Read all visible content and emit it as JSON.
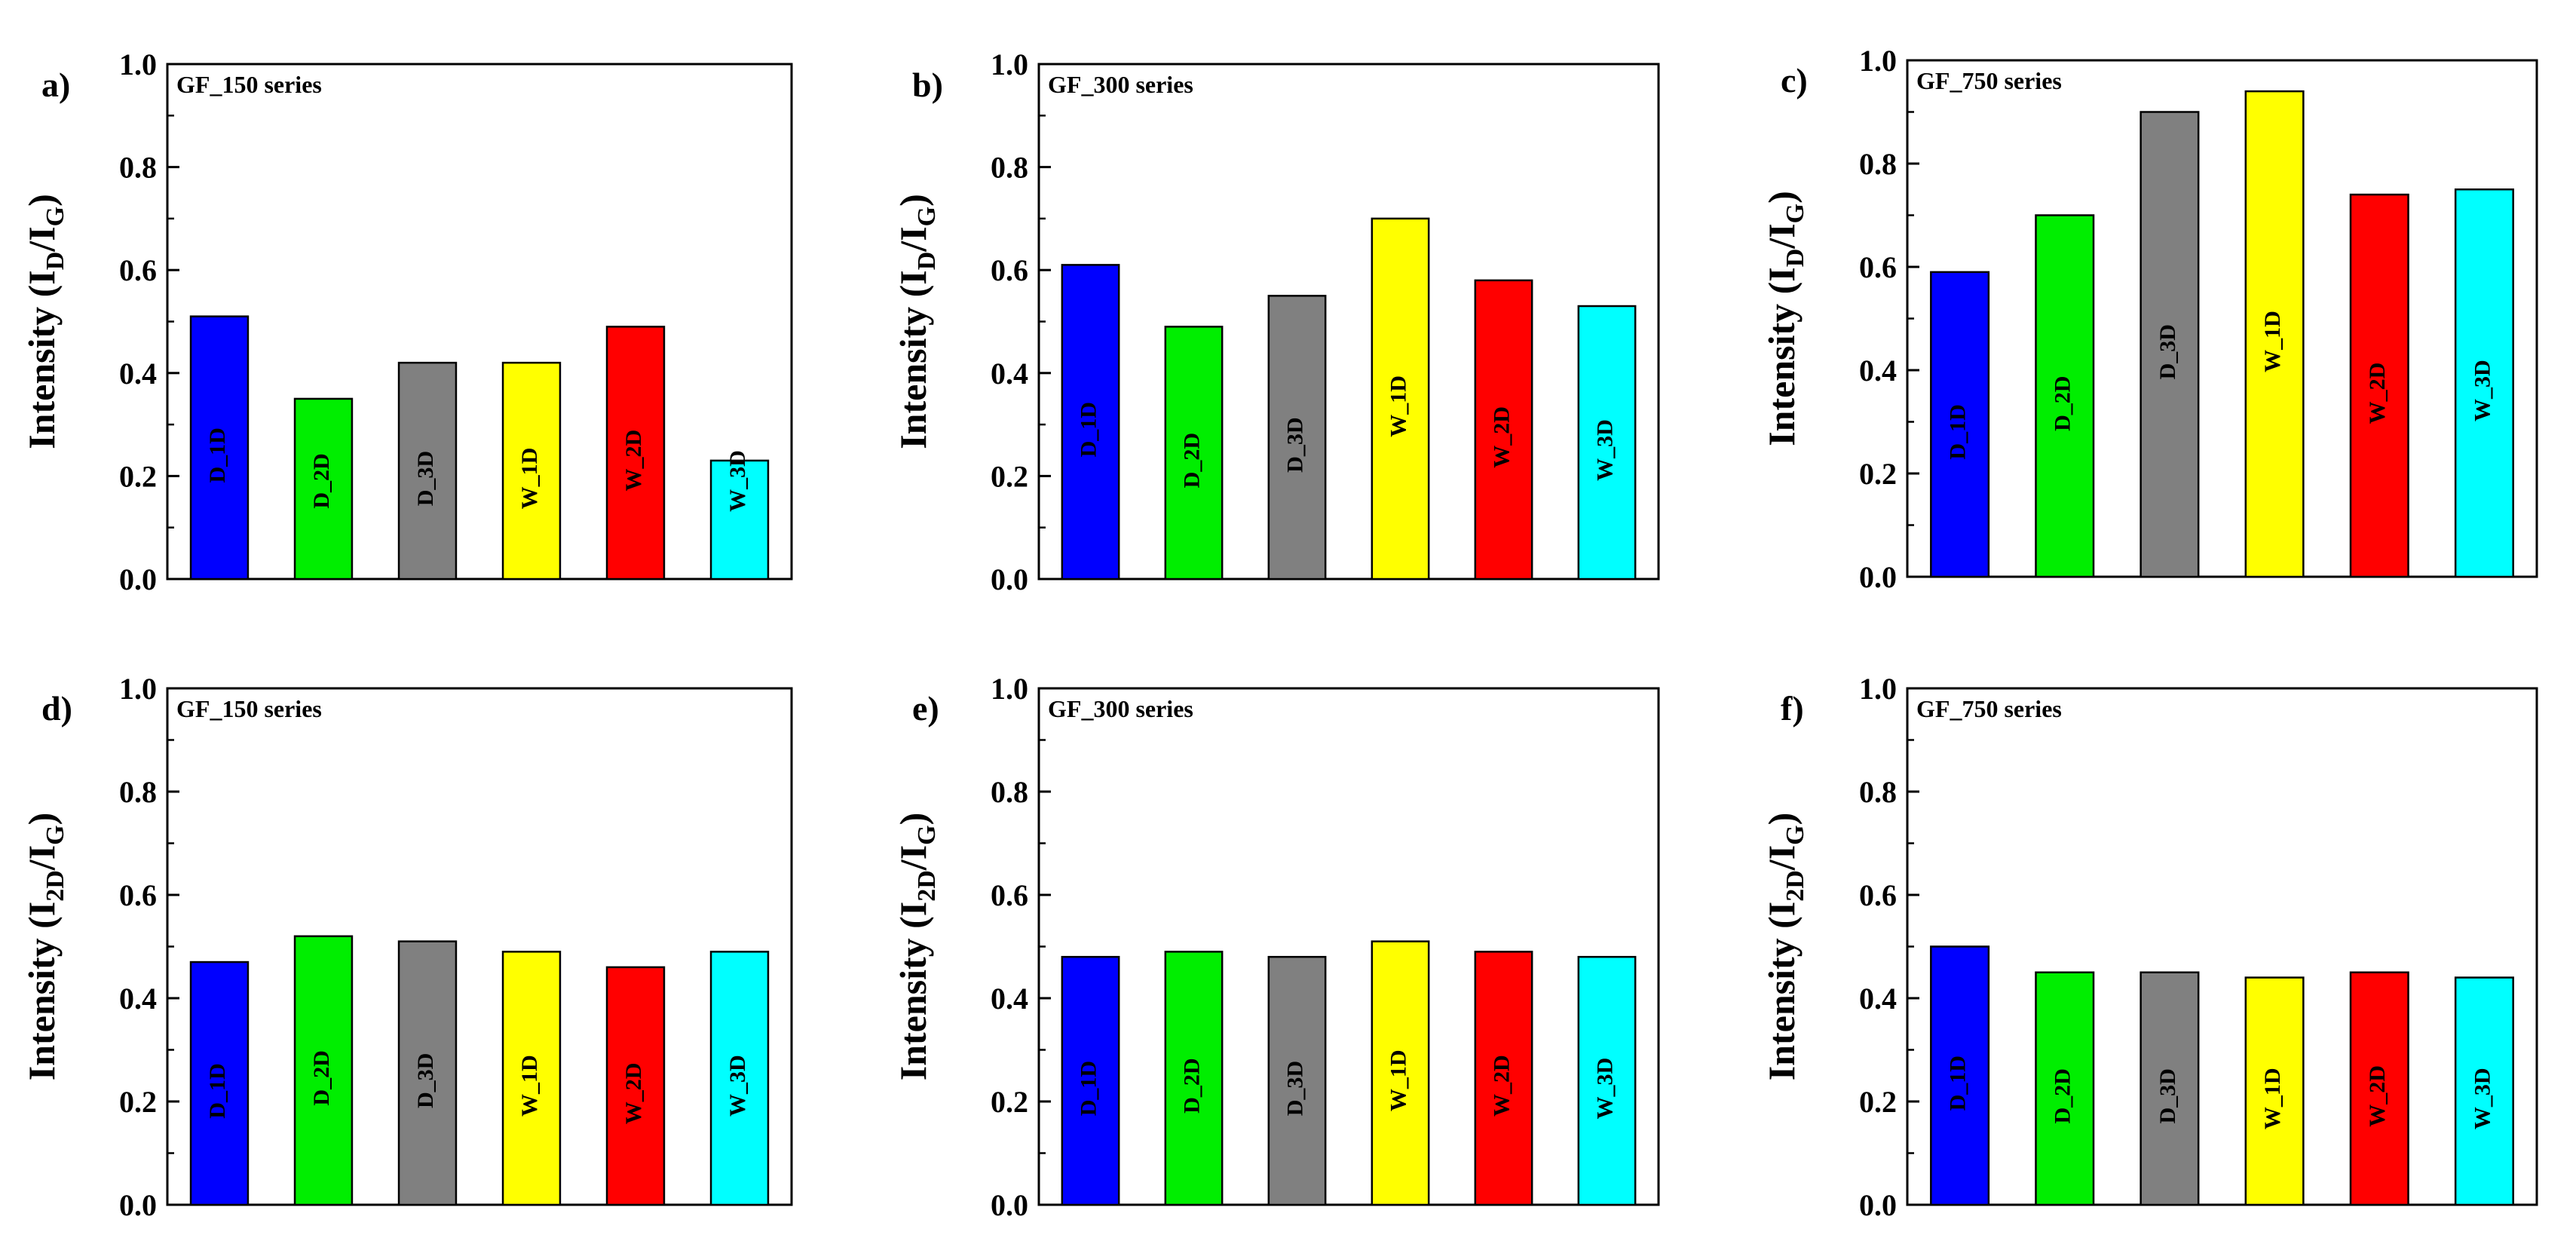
{
  "figure": {
    "panel_letters": [
      "a)",
      "b)",
      "c)",
      "d)",
      "e)",
      "f)"
    ]
  },
  "colors": [
    "#0000ff",
    "#00ee00",
    "#808080",
    "#ffff00",
    "#ff0000",
    "#00ffff"
  ],
  "chart_data": [
    {
      "type": "bar",
      "panel": "a)",
      "series_label": "GF_150 series",
      "ylabel_main": "Intensity (I",
      "ylabel_sub1": "D",
      "ylabel_mid": "/I",
      "ylabel_sub2": "G",
      "ylabel_end": ")",
      "categories": [
        "D_1D",
        "D_2D",
        "D_3D",
        "W_1D",
        "W_2D",
        "W_3D"
      ],
      "values": [
        0.51,
        0.35,
        0.42,
        0.42,
        0.49,
        0.23
      ],
      "ylim": [
        0,
        1.0
      ],
      "yticks": [
        "0.0",
        "0.2",
        "0.4",
        "0.6",
        "0.8",
        "1.0"
      ],
      "grid": false
    },
    {
      "type": "bar",
      "panel": "b)",
      "series_label": "GF_300 series",
      "ylabel_main": "Intensity (I",
      "ylabel_sub1": "D",
      "ylabel_mid": "/I",
      "ylabel_sub2": "G",
      "ylabel_end": ")",
      "categories": [
        "D_1D",
        "D_2D",
        "D_3D",
        "W_1D",
        "W_2D",
        "W_3D"
      ],
      "values": [
        0.61,
        0.49,
        0.55,
        0.7,
        0.58,
        0.53
      ],
      "ylim": [
        0,
        1.0
      ],
      "yticks": [
        "0.0",
        "0.2",
        "0.4",
        "0.6",
        "0.8",
        "1.0"
      ],
      "grid": false
    },
    {
      "type": "bar",
      "panel": "c)",
      "series_label": "GF_750 series",
      "ylabel_main": "Intensity (I",
      "ylabel_sub1": "D",
      "ylabel_mid": "/I",
      "ylabel_sub2": "G",
      "ylabel_end": ")",
      "categories": [
        "D_1D",
        "D_2D",
        "D_3D",
        "W_1D",
        "W_2D",
        "W_3D"
      ],
      "values": [
        0.59,
        0.7,
        0.9,
        0.94,
        0.74,
        0.75
      ],
      "ylim": [
        0,
        1.0
      ],
      "yticks": [
        "0.0",
        "0.2",
        "0.4",
        "0.6",
        "0.8",
        "1.0"
      ],
      "grid": false
    },
    {
      "type": "bar",
      "panel": "d)",
      "series_label": "GF_150 series",
      "ylabel_main": "Intensity (I",
      "ylabel_sub1": "2D",
      "ylabel_mid": "/I",
      "ylabel_sub2": "G",
      "ylabel_end": ")",
      "categories": [
        "D_1D",
        "D_2D",
        "D_3D",
        "W_1D",
        "W_2D",
        "W_3D"
      ],
      "values": [
        0.47,
        0.52,
        0.51,
        0.49,
        0.46,
        0.49
      ],
      "ylim": [
        0,
        1.0
      ],
      "yticks": [
        "0.0",
        "0.2",
        "0.4",
        "0.6",
        "0.8",
        "1.0"
      ],
      "grid": false
    },
    {
      "type": "bar",
      "panel": "e)",
      "series_label": "GF_300 series",
      "ylabel_main": "Intensity (I",
      "ylabel_sub1": "2D",
      "ylabel_mid": "/I",
      "ylabel_sub2": "G",
      "ylabel_end": ")",
      "categories": [
        "D_1D",
        "D_2D",
        "D_3D",
        "W_1D",
        "W_2D",
        "W_3D"
      ],
      "values": [
        0.48,
        0.49,
        0.48,
        0.51,
        0.49,
        0.48
      ],
      "ylim": [
        0,
        1.0
      ],
      "yticks": [
        "0.0",
        "0.2",
        "0.4",
        "0.6",
        "0.8",
        "1.0"
      ],
      "grid": false
    },
    {
      "type": "bar",
      "panel": "f)",
      "series_label": "GF_750 series",
      "ylabel_main": "Intensity (I",
      "ylabel_sub1": "2D",
      "ylabel_mid": "/I",
      "ylabel_sub2": "G",
      "ylabel_end": ")",
      "categories": [
        "D_1D",
        "D_2D",
        "D_3D",
        "W_1D",
        "W_2D",
        "W_3D"
      ],
      "values": [
        0.5,
        0.45,
        0.45,
        0.44,
        0.45,
        0.44
      ],
      "ylim": [
        0,
        1.0
      ],
      "yticks": [
        "0.0",
        "0.2",
        "0.4",
        "0.6",
        "0.8",
        "1.0"
      ],
      "grid": false
    }
  ]
}
